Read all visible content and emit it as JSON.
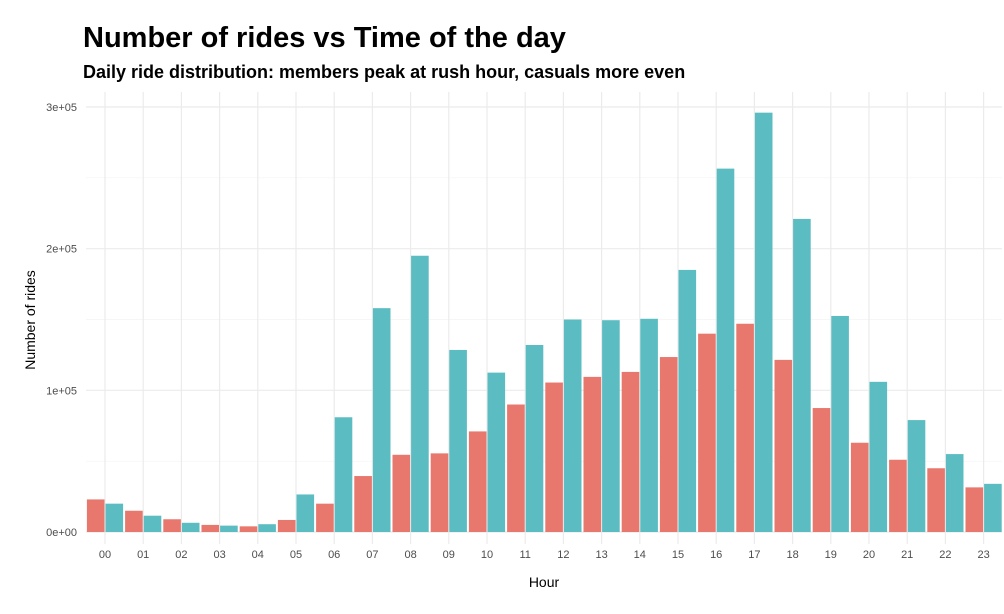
{
  "chart_data": {
    "type": "bar",
    "title": "Number of rides vs Time of the day",
    "subtitle": "Daily ride distribution: members peak at rush hour, casuals more even",
    "xlabel": "Hour",
    "ylabel": "Number of rides",
    "categories": [
      "00",
      "01",
      "02",
      "03",
      "04",
      "05",
      "06",
      "07",
      "08",
      "09",
      "10",
      "11",
      "12",
      "13",
      "14",
      "15",
      "16",
      "17",
      "18",
      "19",
      "20",
      "21",
      "22",
      "23"
    ],
    "series": [
      {
        "color": "#E8786E",
        "values": [
          23000,
          15000,
          9000,
          5000,
          4000,
          8500,
          20000,
          39500,
          54500,
          55500,
          71000,
          90000,
          105500,
          109500,
          113000,
          123500,
          140000,
          147000,
          121500,
          87500,
          63000,
          51000,
          45000,
          31500
        ]
      },
      {
        "color": "#5BBCC2",
        "values": [
          20000,
          11500,
          6500,
          4500,
          5500,
          26500,
          81000,
          158000,
          195000,
          128500,
          112500,
          132000,
          150000,
          149500,
          150500,
          185000,
          256500,
          296000,
          221000,
          152500,
          106000,
          79000,
          55000,
          34000
        ]
      }
    ],
    "ylim": [
      0,
      310000
    ],
    "yticks": [
      0,
      100000,
      200000,
      300000
    ],
    "ytick_labels": [
      "0e+00",
      "1e+05",
      "2e+05",
      "3e+05"
    ],
    "grid": true,
    "legend": "none"
  }
}
